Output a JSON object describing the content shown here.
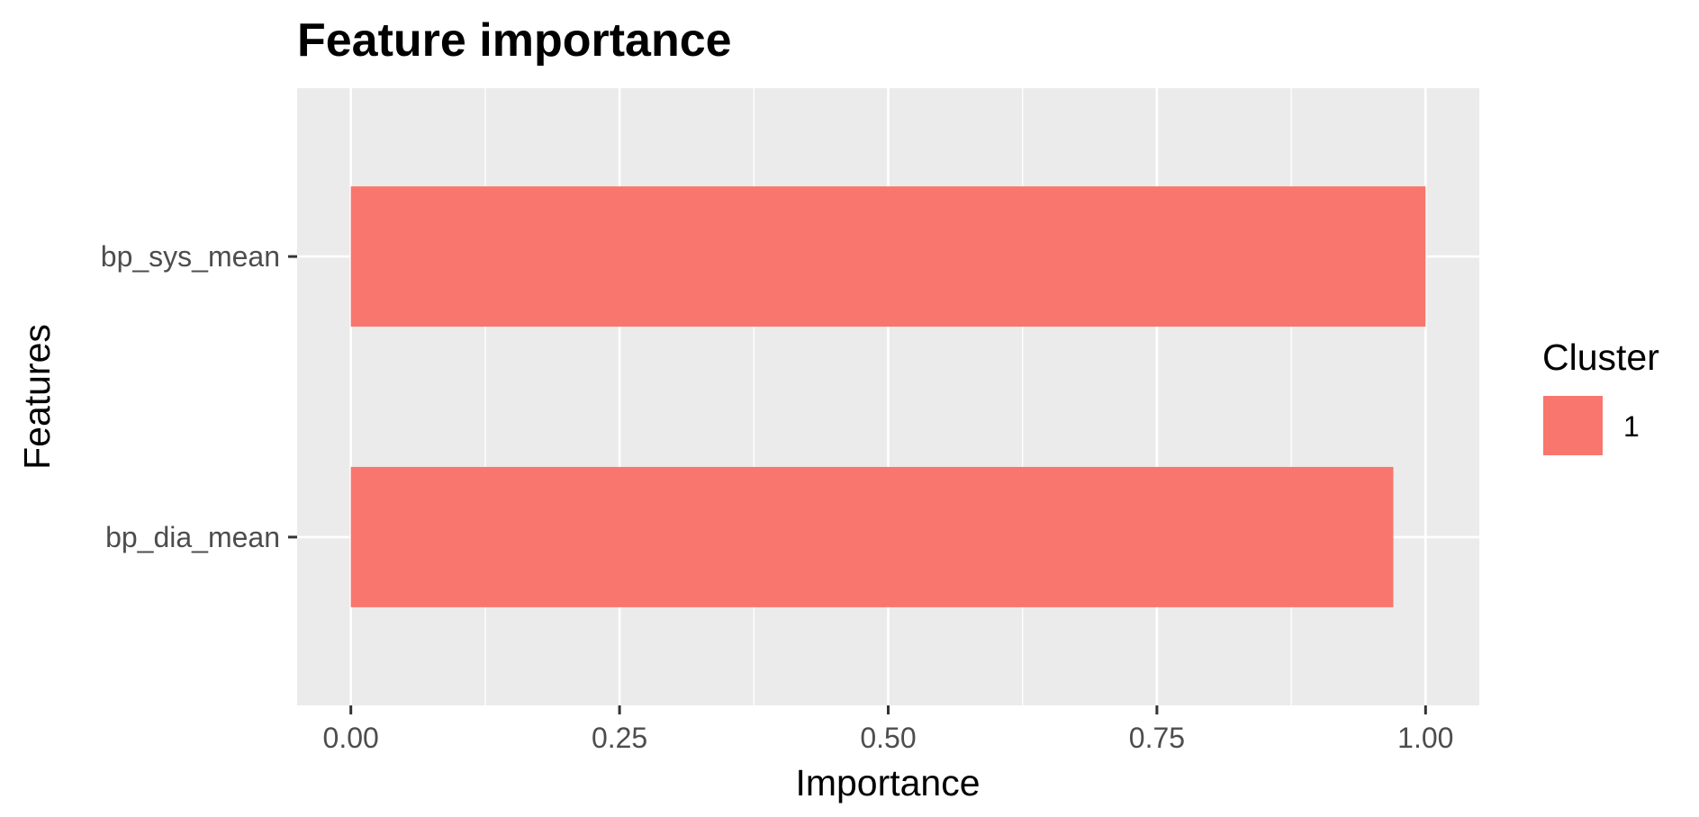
{
  "chart_data": {
    "type": "bar",
    "orientation": "horizontal",
    "title": "Feature importance",
    "xlabel": "Importance",
    "ylabel": "Features",
    "categories": [
      "bp_sys_mean",
      "bp_dia_mean"
    ],
    "series": [
      {
        "name": "1",
        "values": [
          1.0,
          0.97
        ]
      }
    ],
    "xlim": [
      -0.05,
      1.05
    ],
    "x_ticks": [
      0.0,
      0.25,
      0.5,
      0.75,
      1.0
    ],
    "x_tick_labels": [
      "0.00",
      "0.25",
      "0.50",
      "0.75",
      "1.00"
    ],
    "grid": true,
    "legend": {
      "title": "Cluster",
      "position": "right",
      "entries": [
        "1"
      ]
    },
    "colors": {
      "bar": "#F8766D",
      "panel": "#EBEBEB",
      "grid": "#FFFFFF"
    }
  }
}
